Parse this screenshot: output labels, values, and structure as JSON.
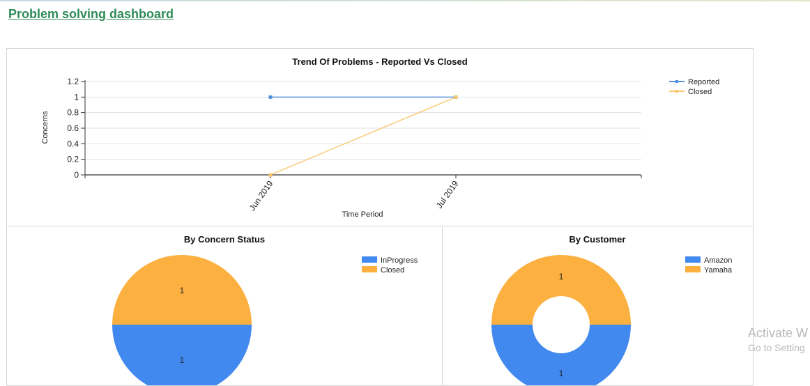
{
  "page": {
    "title": "Problem solving dashboard"
  },
  "watermark": {
    "line1": "Activate W",
    "line2": "Go to Setting"
  },
  "chart_data": [
    {
      "type": "line",
      "title": "Trend Of Problems - Reported Vs Closed",
      "xlabel": "Time Period",
      "ylabel": "Concerns",
      "categories": [
        "Jun 2019",
        "Jul 2019"
      ],
      "ylim": [
        0,
        1.2
      ],
      "yticks": [
        "0",
        "0.2",
        "0.4",
        "0.6",
        "0.8",
        "1",
        "1.2"
      ],
      "grid": true,
      "legend_position": "top-right",
      "series": [
        {
          "name": "Reported",
          "values": [
            1,
            1
          ],
          "color": "#4f8fdc"
        },
        {
          "name": "Closed",
          "values": [
            0,
            1
          ],
          "color": "#f9c56b"
        }
      ]
    },
    {
      "type": "pie",
      "title": "By Concern Status",
      "legend_position": "top-right",
      "slices": [
        {
          "name": "InProgress",
          "value": 1,
          "label": "1",
          "color": "#4289ef"
        },
        {
          "name": "Closed",
          "value": 1,
          "label": "1",
          "color": "#fbb040"
        }
      ]
    },
    {
      "type": "pie",
      "donut": true,
      "title": "By Customer",
      "legend_position": "top-right",
      "slices": [
        {
          "name": "Amazon",
          "value": 1,
          "label": "1",
          "color": "#4289ef"
        },
        {
          "name": "Yamaha",
          "value": 1,
          "label": "1",
          "color": "#fbb040"
        }
      ]
    }
  ]
}
